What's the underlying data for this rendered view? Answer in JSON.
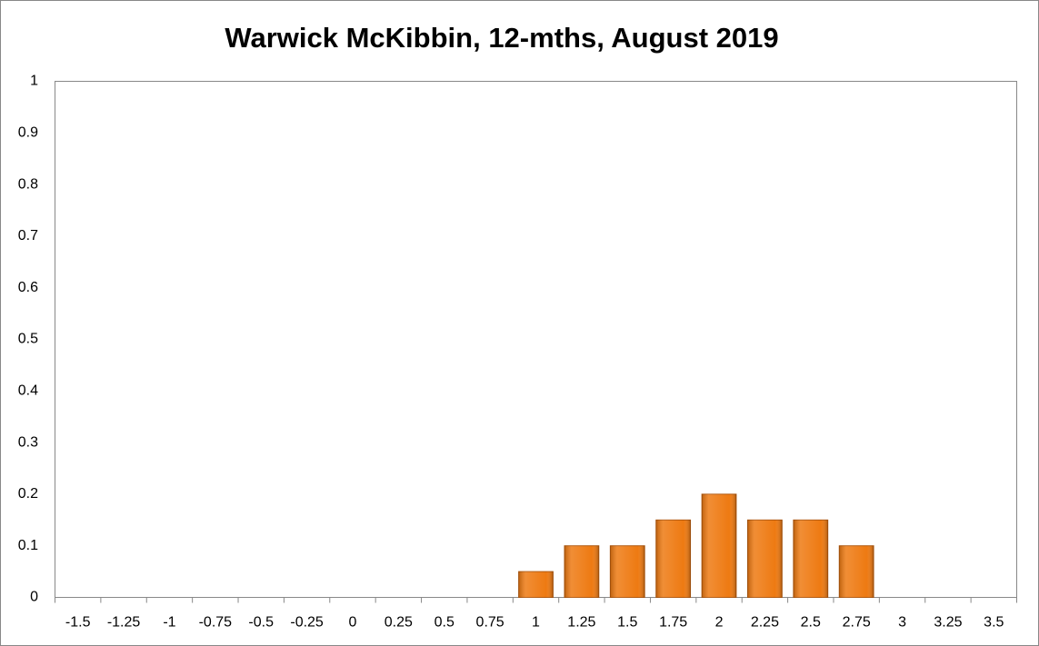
{
  "chart_data": {
    "type": "bar",
    "title": "Warwick McKibbin, 12-mths, August 2019",
    "categories": [
      "-1.5",
      "-1.25",
      "-1",
      "-0.75",
      "-0.5",
      "-0.25",
      "0",
      "0.25",
      "0.5",
      "0.75",
      "1",
      "1.25",
      "1.5",
      "1.75",
      "2",
      "2.25",
      "2.5",
      "2.75",
      "3",
      "3.25",
      "3.5"
    ],
    "values": [
      0,
      0,
      0,
      0,
      0,
      0,
      0,
      0,
      0,
      0,
      0.05,
      0.1,
      0.1,
      0.15,
      0.2,
      0.15,
      0.15,
      0.1,
      0,
      0,
      0
    ],
    "color": "#ee7a12",
    "ylim": [
      0,
      1
    ],
    "yticks": [
      0,
      0.1,
      0.2,
      0.3,
      0.4,
      0.5,
      0.6,
      0.7,
      0.8,
      0.9,
      1
    ],
    "grid": false
  }
}
